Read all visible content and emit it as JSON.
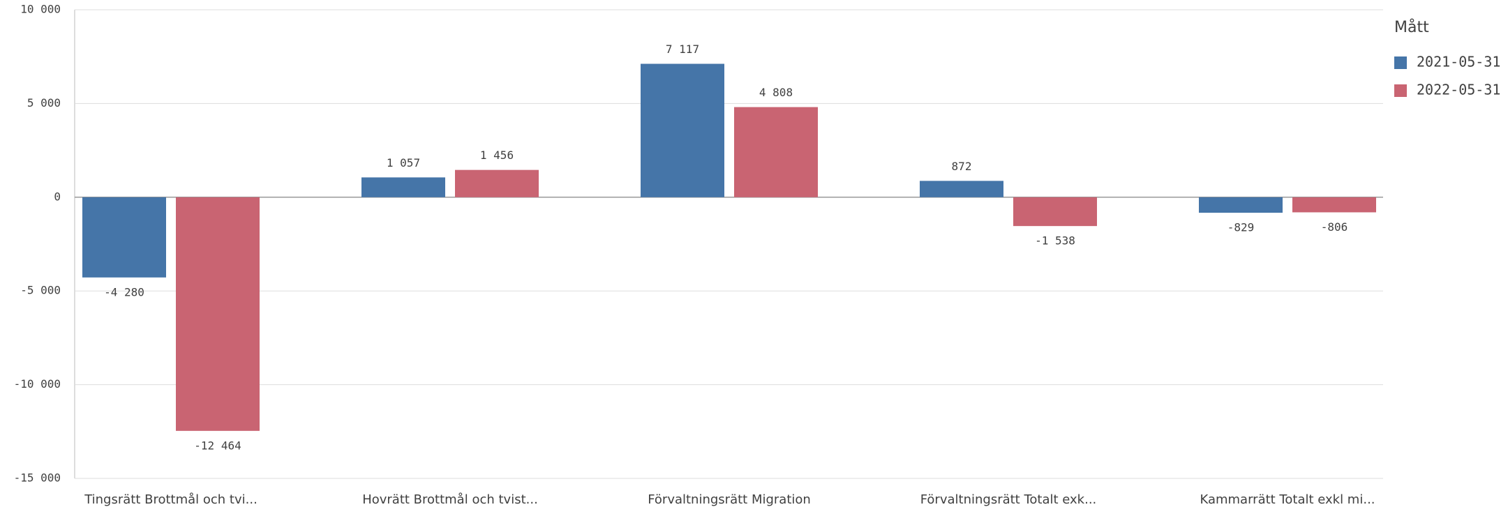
{
  "chart_data": {
    "type": "bar",
    "categories": [
      "Tingsrätt Brottmål och tvi...",
      "Hovrätt Brottmål och tvist...",
      "Förvaltningsrätt Migration",
      "Förvaltningsrätt Totalt exk...",
      "Kammarrätt Totalt exkl mi..."
    ],
    "series": [
      {
        "name": "2021-05-31",
        "color": "#4575a8",
        "values": [
          -4280,
          1057,
          7117,
          872,
          -829
        ],
        "value_labels": [
          "-4 280",
          "1 057",
          "7 117",
          "872",
          "-829"
        ]
      },
      {
        "name": "2022-05-31",
        "color": "#c96472",
        "values": [
          -12464,
          1456,
          4808,
          -1538,
          -806
        ],
        "value_labels": [
          "-12 464",
          "1 456",
          "4 808",
          "-1 538",
          "-806"
        ]
      }
    ],
    "legend_title": "Mått",
    "legend": "right",
    "ylim": [
      -15000,
      10000
    ],
    "yticks": [
      {
        "value": -15000,
        "label": "-15 000"
      },
      {
        "value": -10000,
        "label": "-10 000"
      },
      {
        "value": -5000,
        "label": "-5 000"
      },
      0,
      {
        "value": 5000,
        "label": "5 000"
      },
      {
        "value": 10000,
        "label": "10 000"
      }
    ],
    "grid": true
  }
}
